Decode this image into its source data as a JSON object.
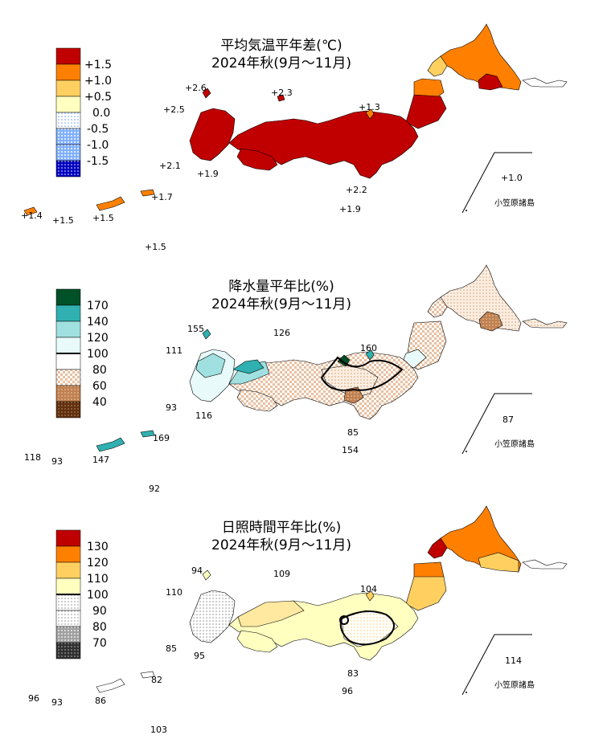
{
  "panels": [
    {
      "id": "temperature",
      "title_line1": "平均気温平年差(℃)",
      "title_line2": "2024年秋(9月～11月)",
      "legend": [
        {
          "label": "+1.5",
          "color": "#c00000",
          "pattern": "solid"
        },
        {
          "label": "+1.0",
          "color": "#ff8000",
          "pattern": "solid"
        },
        {
          "label": "+0.5",
          "color": "#ffd060",
          "pattern": "solid"
        },
        {
          "label": "0.0",
          "color": "#ffffc0",
          "pattern": "solid"
        },
        {
          "label": "-0.5",
          "color": "#9fc0ff",
          "pattern": "dots-light"
        },
        {
          "label": "-1.0",
          "color": "#4080ff",
          "pattern": "dots-medium"
        },
        {
          "label": "-1.5",
          "color": "#0000c0",
          "pattern": "dots-dense"
        },
        {
          "label": "",
          "color": "#0000c0",
          "pattern": "dots-dense"
        }
      ],
      "station_labels": [
        "+2.6",
        "+2.3",
        "+2.5",
        "+1.3",
        "+2.1",
        "+1.9",
        "+2.2",
        "+1.9",
        "+1.7",
        "+1.4",
        "+1.5",
        "+1.5",
        "+1.5",
        "+1.0"
      ],
      "ogasawara": "小笠原諸島"
    },
    {
      "id": "precipitation",
      "title_line1": "降水量平年比(%)",
      "title_line2": "2024年秋(9月～11月)",
      "legend": [
        {
          "label": "170",
          "color": "#005028",
          "pattern": "solid"
        },
        {
          "label": "140",
          "color": "#30b0b0",
          "pattern": "solid"
        },
        {
          "label": "120",
          "color": "#a0e0e0",
          "pattern": "solid"
        },
        {
          "label": "100",
          "color": "#e8fafa",
          "pattern": "solid"
        },
        {
          "label": "80",
          "color": "#f0d0b8",
          "pattern": "check"
        },
        {
          "label": "60",
          "color": "#c08050",
          "pattern": "dots-medium"
        },
        {
          "label": "40",
          "color": "#603010",
          "pattern": "dots-dense"
        },
        {
          "label": "",
          "color": "#603010",
          "pattern": "dots-dense"
        }
      ],
      "station_labels": [
        "155",
        "126",
        "111",
        "160",
        "93",
        "116",
        "85",
        "154",
        "169",
        "118",
        "93",
        "147",
        "92",
        "87"
      ],
      "ogasawara": "小笠原諸島"
    },
    {
      "id": "sunshine",
      "title_line1": "日照時間平年比(%)",
      "title_line2": "2024年秋(9月～11月)",
      "legend": [
        {
          "label": "130",
          "color": "#c00000",
          "pattern": "solid"
        },
        {
          "label": "120",
          "color": "#ff8000",
          "pattern": "solid"
        },
        {
          "label": "110",
          "color": "#ffd060",
          "pattern": "solid"
        },
        {
          "label": "100",
          "color": "#ffffc0",
          "pattern": "solid"
        },
        {
          "label": "90",
          "color": "#ffffff",
          "pattern": "dots-light"
        },
        {
          "label": "80",
          "color": "#a0a0a0",
          "pattern": "dots-medium"
        },
        {
          "label": "70",
          "color": "#404040",
          "pattern": "dots-dense"
        },
        {
          "label": "",
          "color": "#404040",
          "pattern": "dots-dense"
        }
      ],
      "station_labels": [
        "94",
        "109",
        "110",
        "104",
        "85",
        "95",
        "83",
        "96",
        "82",
        "96",
        "93",
        "86",
        "103",
        "114"
      ],
      "ogasawara": "小笠原諸島"
    }
  ],
  "region_colors": {
    "temperature": {
      "hokkaido": "#ff8000",
      "hokkaido_inner": "#c00000",
      "tohoku": "#c00000",
      "tohoku_north": "#ff8000",
      "honshu": "#c00000",
      "kyushu": "#c00000",
      "tips": "#ffd060"
    },
    "precipitation": {
      "hokkaido": "#f0d8c0",
      "hokkaido_inner": "#c08050",
      "tohoku": "#f0e0d0",
      "tohoku_west": "#e8fafa",
      "honshu": "#f0e0d0",
      "kyushu": "#a0e0e0",
      "chugoku": "#30b0b0"
    },
    "sunshine": {
      "hokkaido": "#ff8000",
      "hokkaido_south": "#ffd060",
      "tohoku": "#ffd060",
      "honshu": "#ffffc0",
      "kyushu": "#ffffff",
      "chugoku": "#ffe9a0"
    }
  }
}
